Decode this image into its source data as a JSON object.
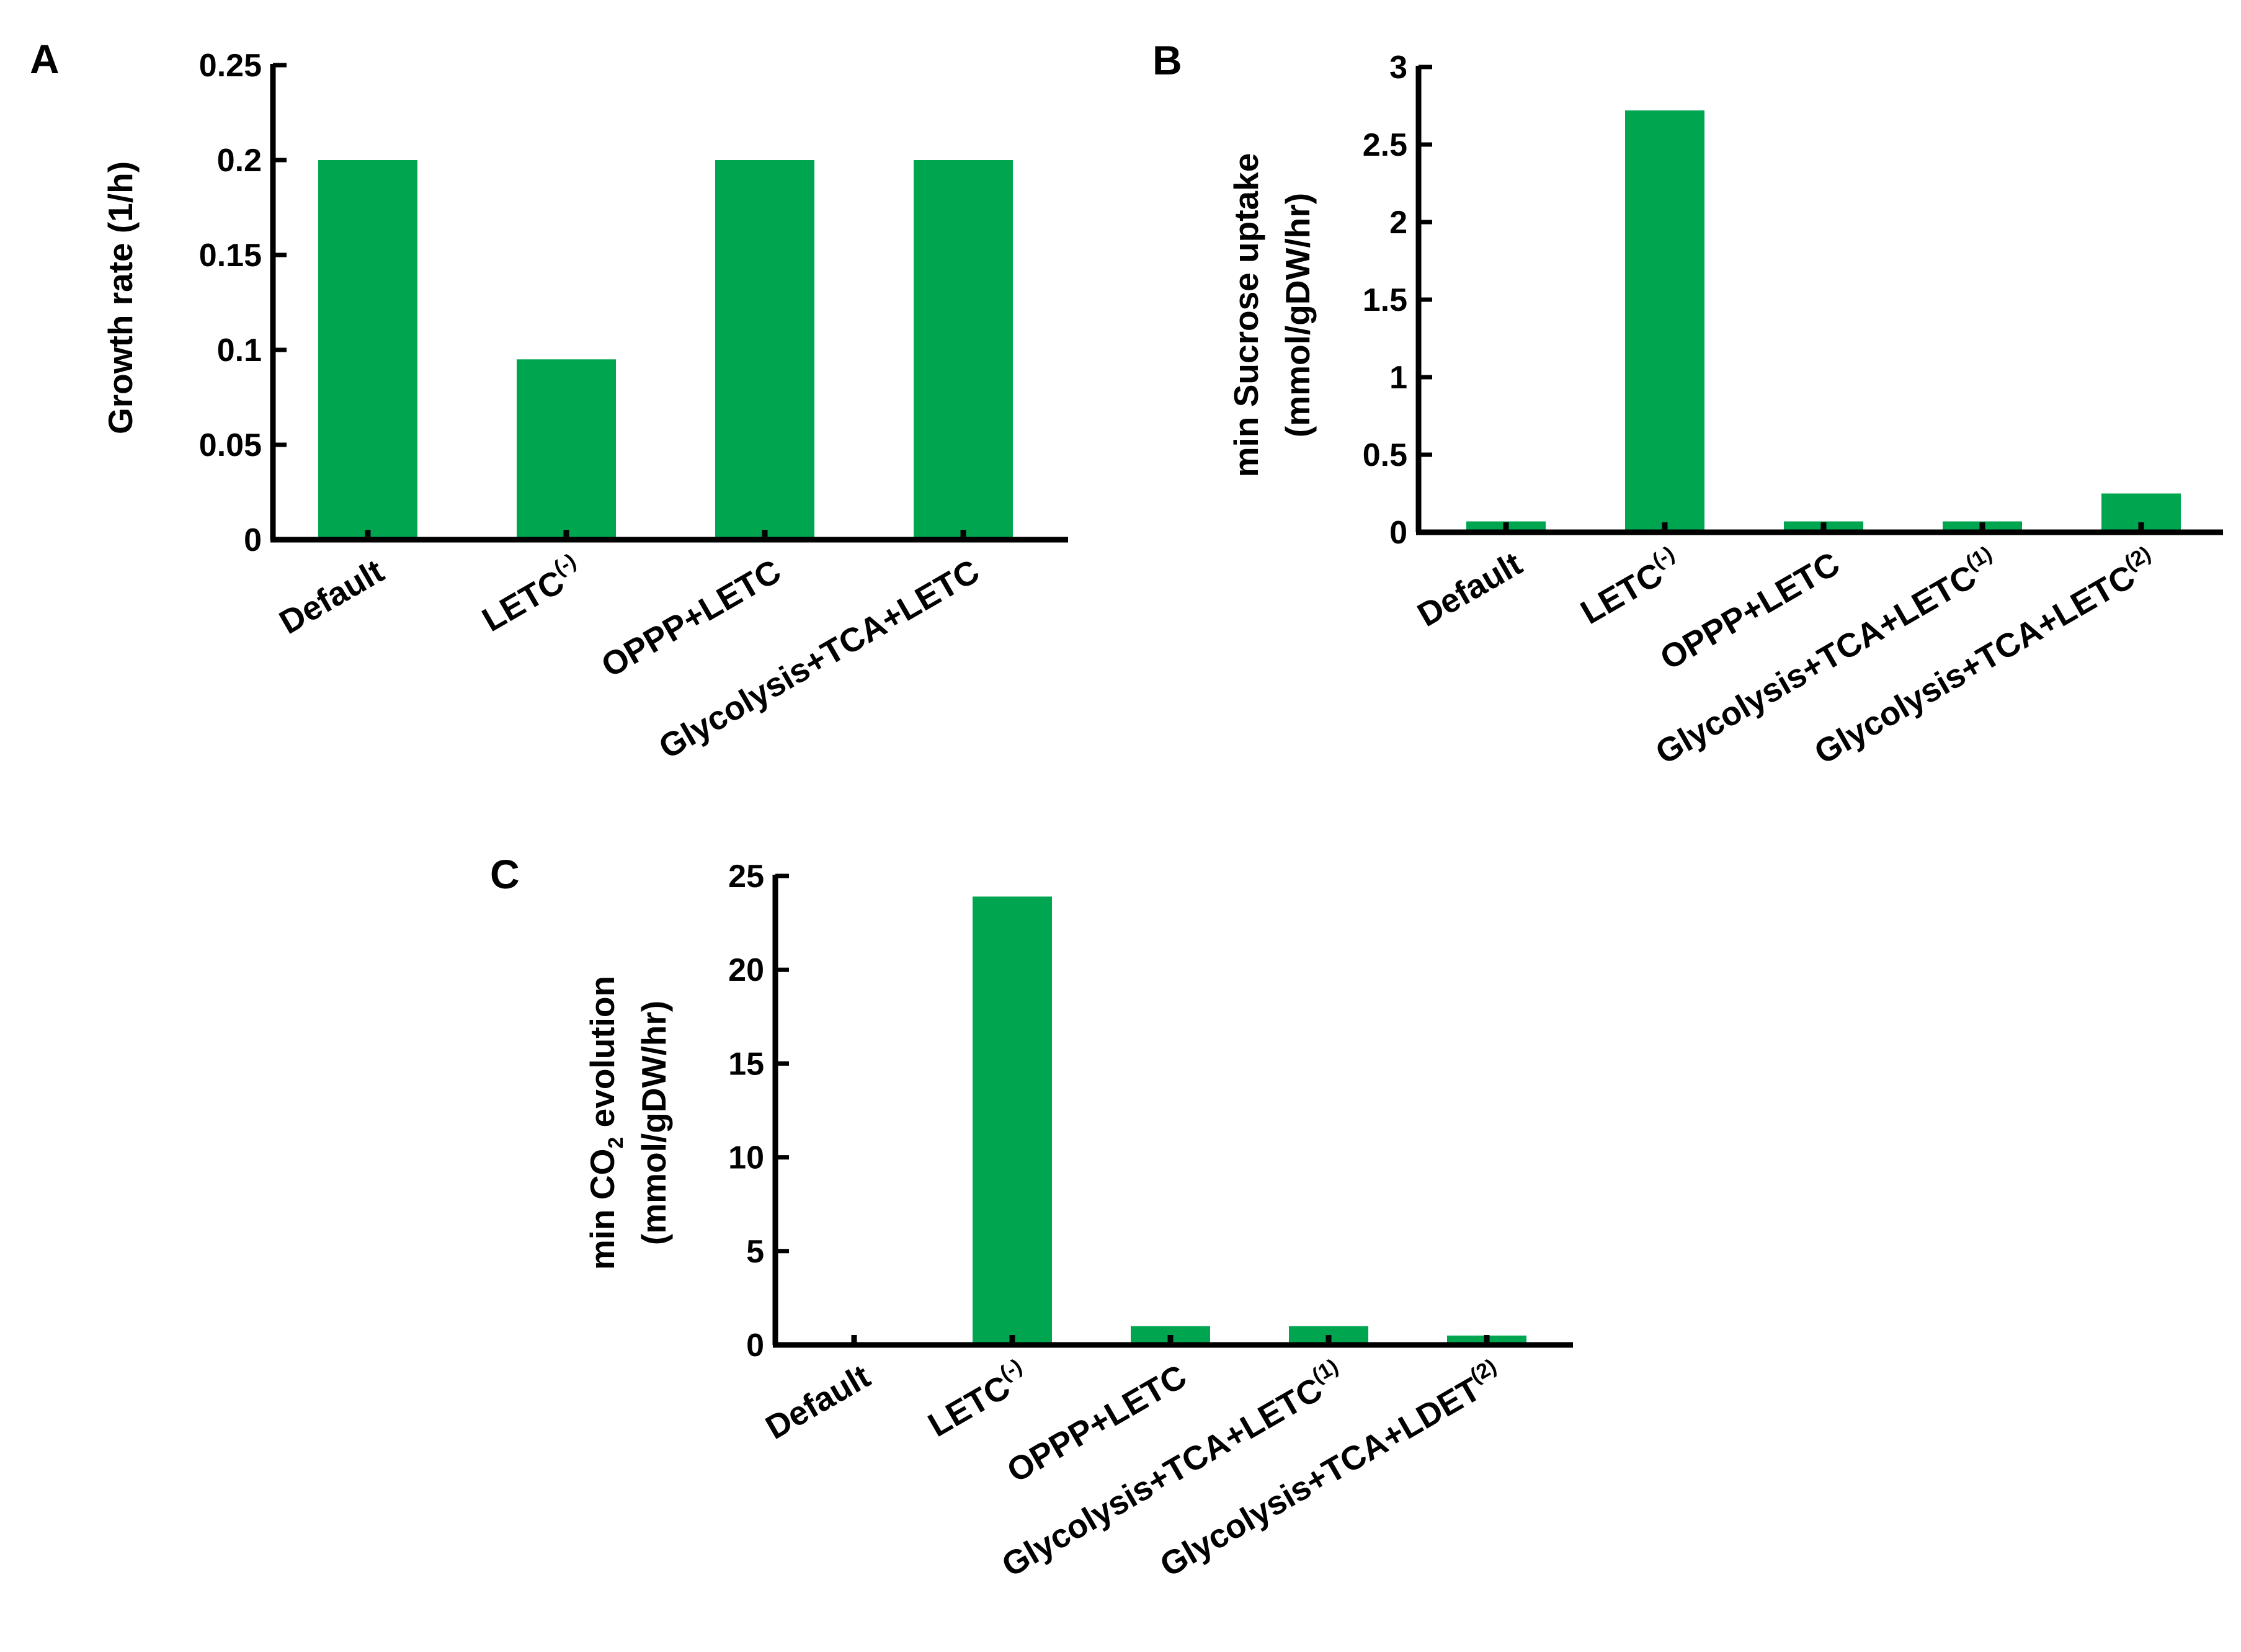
{
  "chart_data": [
    {
      "panel": "A",
      "type": "bar",
      "title": "",
      "xlabel": "",
      "ylabel_lines": [
        "Growth rate (1/h)"
      ],
      "ylim": [
        0,
        0.25
      ],
      "yticks": [
        "0",
        "0.05",
        "0.1",
        "0.15",
        "0.2",
        "0.25"
      ],
      "ytick_values": [
        0,
        0.05,
        0.1,
        0.15,
        0.2,
        0.25
      ],
      "categories": [
        {
          "base": "Default",
          "sup": ""
        },
        {
          "base": "LETC",
          "sup": "(-)"
        },
        {
          "base": "OPPP+LETC",
          "sup": ""
        },
        {
          "base": "Glycolysis+TCA+LETC",
          "sup": ""
        }
      ],
      "values": [
        0.2,
        0.095,
        0.2,
        0.2
      ],
      "bar_color": "#00a550"
    },
    {
      "panel": "B",
      "type": "bar",
      "title": "",
      "xlabel": "",
      "ylabel_lines": [
        "min Sucrose uptake",
        "(mmol/gDW/hr)"
      ],
      "ylim": [
        0,
        3
      ],
      "yticks": [
        "0",
        "0.5",
        "1",
        "1.5",
        "2",
        "2.5",
        "3"
      ],
      "ytick_values": [
        0,
        0.5,
        1,
        1.5,
        2,
        2.5,
        3
      ],
      "categories": [
        {
          "base": "Default",
          "sup": ""
        },
        {
          "base": "LETC",
          "sup": "(-)"
        },
        {
          "base": "OPPP+LETC",
          "sup": ""
        },
        {
          "base": "Glycolysis+TCA+LETC",
          "sup": "(1)"
        },
        {
          "base": "Glycolysis+TCA+LETC",
          "sup": "(2)"
        }
      ],
      "values": [
        0.07,
        2.72,
        0.07,
        0.07,
        0.25
      ],
      "bar_color": "#00a550"
    },
    {
      "panel": "C",
      "type": "bar",
      "title": "",
      "xlabel": "",
      "ylabel_lines": [
        "min CO2 evolution",
        "(mmol/gDW/hr)"
      ],
      "ylabel_parts": {
        "pre": "min CO",
        "sub": "2",
        "post": " evolution"
      },
      "ylim": [
        0,
        25
      ],
      "yticks": [
        "0",
        "5",
        "10",
        "15",
        "20",
        "25"
      ],
      "ytick_values": [
        0,
        5,
        10,
        15,
        20,
        25
      ],
      "categories": [
        {
          "base": "Default",
          "sup": ""
        },
        {
          "base": "LETC",
          "sup": "(-)"
        },
        {
          "base": "OPPP+LETC",
          "sup": ""
        },
        {
          "base": "Glycolysis+TCA+LETC",
          "sup": "(1)"
        },
        {
          "base": "Glycolysis+TCA+LDET",
          "sup": "(2)"
        }
      ],
      "values": [
        0,
        23.9,
        1.0,
        1.0,
        0.5
      ],
      "bar_color": "#00a550"
    }
  ]
}
